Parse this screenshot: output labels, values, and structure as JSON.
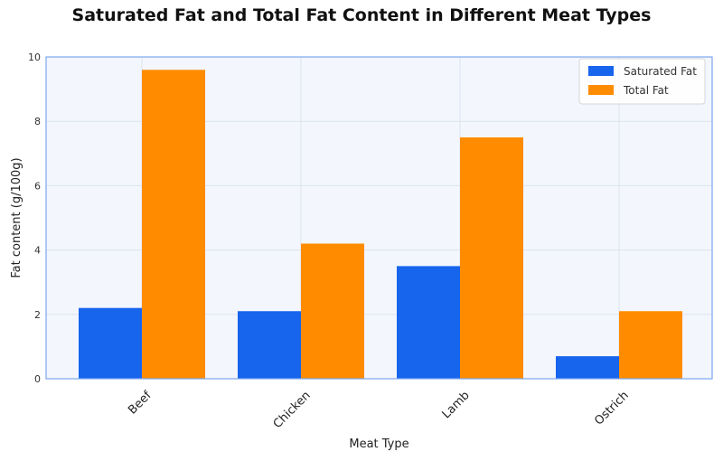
{
  "chart_data": {
    "type": "bar",
    "title": "Saturated Fat and Total Fat Content in Different Meat Types",
    "xlabel": "Meat Type",
    "ylabel": "Fat content (g/100g)",
    "categories": [
      "Beef",
      "Chicken",
      "Lamb",
      "Ostrich"
    ],
    "series": [
      {
        "name": "Saturated Fat",
        "values": [
          2.2,
          2.1,
          3.5,
          0.7
        ],
        "color": "#1764ED"
      },
      {
        "name": "Total Fat",
        "values": [
          9.6,
          4.2,
          7.5,
          2.1
        ],
        "color": "#FF8C00"
      }
    ],
    "ylim": [
      0,
      10
    ],
    "yticks": [
      "0",
      "2",
      "4",
      "6",
      "8",
      "10"
    ],
    "grid": true,
    "legend_position": "top-right",
    "colors": {
      "plot_background": "#F3F6FD",
      "frame": "#7BA6EE",
      "grid": "#DDE3EE"
    }
  }
}
